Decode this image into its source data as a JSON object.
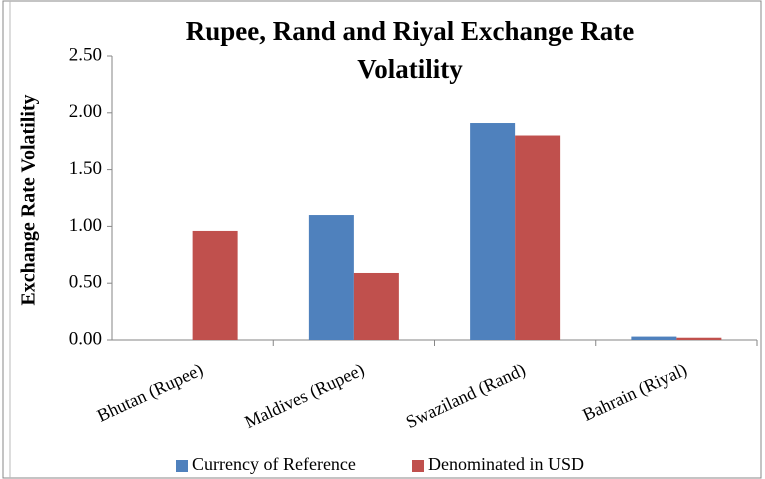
{
  "chart_data": {
    "type": "bar",
    "title": "Rupee, Rand and Riyal Exchange Rate Volatility",
    "y_label": "Exchange Rate Volatility",
    "categories": [
      "Bhutan (Rupee)",
      "Maldives (Rupee)",
      "Swaziland (Rand)",
      "Bahrain (Riyal)"
    ],
    "series": [
      {
        "name": "Currency of Reference",
        "color": "#4f81bd",
        "values": [
          0,
          1.1,
          1.91,
          0.03
        ]
      },
      {
        "name": "Denominated in USD",
        "color": "#c0504d",
        "values": [
          0.96,
          0.59,
          1.8,
          0.02
        ]
      }
    ],
    "ylim": [
      0,
      2.5
    ],
    "yticks": [
      {
        "value": 0,
        "label": "0.00"
      },
      {
        "value": 0.5,
        "label": "0.50"
      },
      {
        "value": 1,
        "label": "1.00"
      },
      {
        "value": 1.5,
        "label": "1.50"
      },
      {
        "value": 2,
        "label": "2.00"
      },
      {
        "value": 2.5,
        "label": "2.50"
      }
    ],
    "legend": "bottom",
    "grid": false
  }
}
